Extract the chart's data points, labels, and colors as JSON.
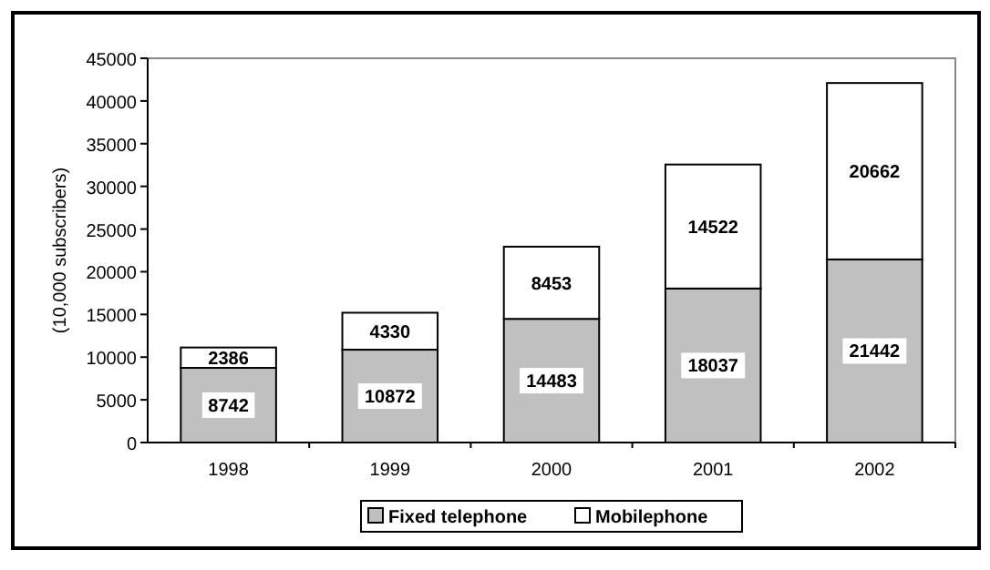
{
  "chart_data": {
    "type": "bar",
    "stacked": true,
    "ylabel": "(10,000 subscribers)",
    "categories": [
      "1998",
      "1999",
      "2000",
      "2001",
      "2002"
    ],
    "series": [
      {
        "name": "Fixed telephone",
        "color": "#c0c0c0",
        "values": [
          8742,
          10872,
          14483,
          18037,
          21442
        ]
      },
      {
        "name": "Mobilephone",
        "color": "#ffffff",
        "values": [
          2386,
          4330,
          8453,
          14522,
          20662
        ]
      }
    ],
    "ylim": [
      0,
      45000
    ],
    "yticks": [
      0,
      5000,
      10000,
      15000,
      20000,
      25000,
      30000,
      35000,
      40000,
      45000
    ],
    "data_labels": true,
    "legend": "bottom",
    "grid": false
  }
}
